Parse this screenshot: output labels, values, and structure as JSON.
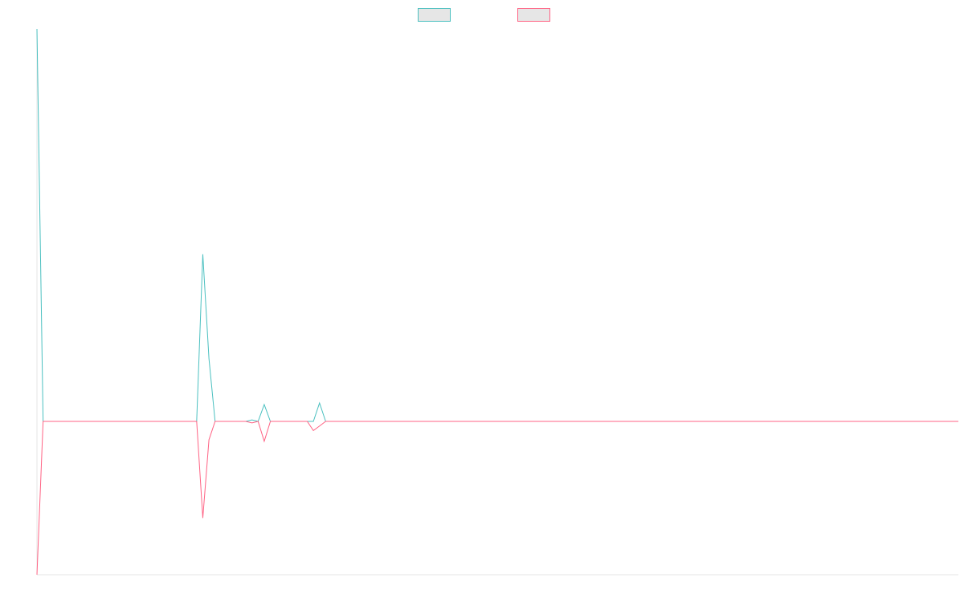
{
  "chart_data": {
    "type": "line",
    "title": "",
    "xlabel": "",
    "ylabel": "",
    "grid": false,
    "legend_position": "top-center",
    "x": [
      0,
      1,
      2,
      3,
      4,
      5,
      6,
      7,
      8,
      9,
      10,
      11,
      12,
      13,
      14,
      15,
      16,
      17,
      18,
      19,
      20,
      21,
      22,
      23,
      24,
      25,
      26,
      27,
      28,
      29,
      30,
      31,
      32,
      33,
      34,
      35,
      36,
      37,
      38,
      39,
      40,
      41,
      42,
      43,
      44,
      45,
      46,
      47,
      48,
      49,
      50,
      51,
      52,
      53,
      54,
      55,
      56,
      57,
      58,
      59,
      60,
      61,
      62,
      63,
      64,
      65,
      66,
      67,
      68,
      69,
      70,
      71,
      72,
      73,
      74,
      75,
      76,
      77,
      78,
      79,
      80,
      81,
      82,
      83,
      84,
      85,
      86,
      87,
      88,
      89,
      90,
      91,
      92,
      93,
      94,
      95,
      96,
      97,
      98,
      99,
      100,
      101,
      102,
      103,
      104,
      105,
      106,
      107,
      108,
      109,
      110,
      111,
      112,
      113,
      114,
      115,
      116,
      117,
      118,
      119,
      120,
      121,
      122,
      123,
      124,
      125,
      126,
      127,
      128,
      129,
      130,
      131,
      132,
      133,
      134,
      135,
      136,
      137,
      138,
      139,
      140,
      141,
      142,
      143,
      144,
      145,
      146,
      147,
      148,
      149,
      150
    ],
    "xlim": [
      0,
      150
    ],
    "ylim": [
      -10,
      25.6
    ],
    "series": [
      {
        "color": "#4bc0c0",
        "fill": "#e6e6e6",
        "values": [
          25.6,
          0,
          0,
          0,
          0,
          0,
          0,
          0,
          0,
          0,
          0,
          0,
          0,
          0,
          0,
          0,
          0,
          0,
          0,
          0,
          0,
          0,
          0,
          0,
          0,
          0,
          0,
          10.9,
          4.1,
          0,
          0,
          0,
          0,
          0,
          0,
          0.1,
          0,
          1.1,
          0,
          0,
          0,
          0,
          0,
          0,
          0,
          0,
          1.2,
          0,
          0,
          0,
          0,
          0,
          0,
          0,
          0,
          0,
          0,
          0,
          0,
          0,
          0,
          0,
          0,
          0,
          0,
          0,
          0,
          0,
          0,
          0,
          0,
          0,
          0,
          0,
          0,
          0,
          0,
          0,
          0,
          0,
          0,
          0,
          0,
          0,
          0,
          0,
          0,
          0,
          0,
          0,
          0,
          0,
          0,
          0,
          0,
          0,
          0,
          0,
          0,
          0,
          0,
          0,
          0,
          0,
          0,
          0,
          0,
          0,
          0,
          0,
          0,
          0,
          0,
          0,
          0,
          0,
          0,
          0,
          0,
          0,
          0,
          0,
          0,
          0,
          0,
          0,
          0,
          0,
          0,
          0,
          0,
          0,
          0,
          0,
          0,
          0,
          0,
          0,
          0,
          0,
          0,
          0,
          0,
          0,
          0,
          0,
          0,
          0,
          0,
          0,
          0
        ]
      },
      {
        "color": "#ff6384",
        "fill": "#e6e6e6",
        "values": [
          -10,
          0,
          0,
          0,
          0,
          0,
          0,
          0,
          0,
          0,
          0,
          0,
          0,
          0,
          0,
          0,
          0,
          0,
          0,
          0,
          0,
          0,
          0,
          0,
          0,
          0,
          0,
          -6.3,
          -1.2,
          0,
          0,
          0,
          0,
          0,
          0,
          -0.1,
          0,
          -1.3,
          0,
          0,
          0,
          0,
          0,
          0,
          0,
          -0.6,
          -0.3,
          0,
          0,
          0,
          0,
          0,
          0,
          0,
          0,
          0,
          0,
          0,
          0,
          0,
          0,
          0,
          0,
          0,
          0,
          0,
          0,
          0,
          0,
          0,
          0,
          0,
          0,
          0,
          0,
          0,
          0,
          0,
          0,
          0,
          0,
          0,
          0,
          0,
          0,
          0,
          0,
          0,
          0,
          0,
          0,
          0,
          0,
          0,
          0,
          0,
          0,
          0,
          0,
          0,
          0,
          0,
          0,
          0,
          0,
          0,
          0,
          0,
          0,
          0,
          0,
          0,
          0,
          0,
          0,
          0,
          0,
          0,
          0,
          0,
          0,
          0,
          0,
          0,
          0,
          0,
          0,
          0,
          0,
          0,
          0,
          0,
          0,
          0,
          0,
          0,
          0,
          0,
          0,
          0,
          0,
          0,
          0,
          0,
          0,
          0,
          0,
          0,
          0,
          0,
          0
        ]
      }
    ]
  }
}
